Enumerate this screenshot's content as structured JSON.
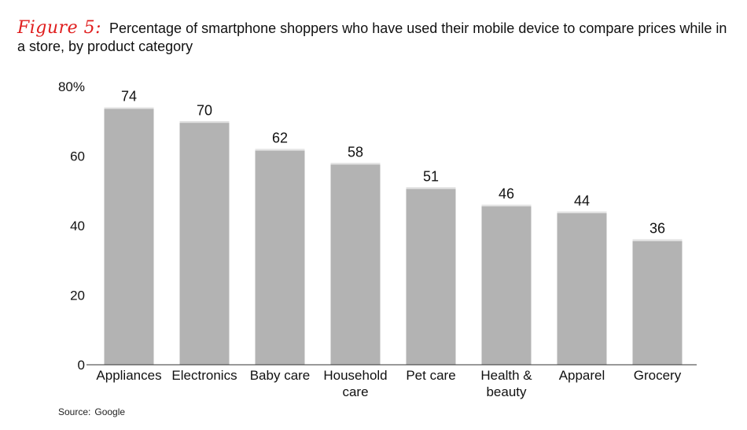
{
  "header": {
    "figure_label": "Figure 5:",
    "title": "Percentage of smartphone shoppers who have used their mobile device to compare prices while in a store, by product category"
  },
  "footer": {
    "source_label": "Source:",
    "source_value": "Google"
  },
  "chart_data": {
    "type": "bar",
    "categories": [
      [
        "Appliances"
      ],
      [
        "Electronics"
      ],
      [
        "Baby care"
      ],
      [
        "Household",
        "care"
      ],
      [
        "Pet care"
      ],
      [
        "Health &",
        "beauty"
      ],
      [
        "Apparel"
      ],
      [
        "Grocery"
      ]
    ],
    "values": [
      74,
      70,
      62,
      58,
      51,
      46,
      44,
      36
    ],
    "y_ticks": [
      {
        "value": 0,
        "label": "0"
      },
      {
        "value": 20,
        "label": "20"
      },
      {
        "value": 40,
        "label": "40"
      },
      {
        "value": 60,
        "label": "60"
      },
      {
        "value": 80,
        "label": "80%"
      }
    ],
    "ylim": [
      0,
      80
    ],
    "grid": false,
    "bar_color": "#b3b3b3",
    "bar_highlight": "#e4e4e4",
    "title_accent_color": "#e01e1e"
  }
}
